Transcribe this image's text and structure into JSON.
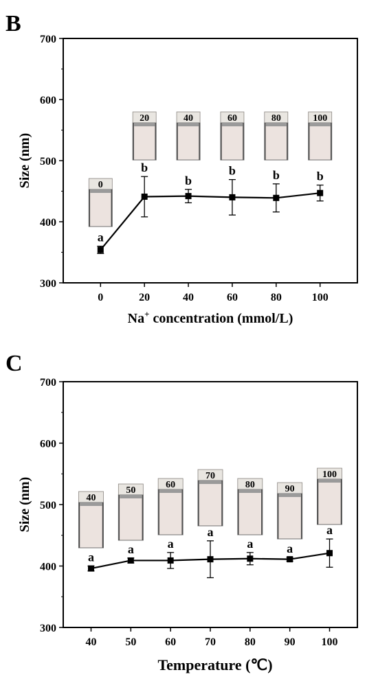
{
  "chart_data": [
    {
      "type": "line",
      "panel_label": "B",
      "title": "",
      "xlabel_main": "Na",
      "xlabel_sup": "+",
      "xlabel_rest": " concentration (mmol/L)",
      "ylabel": "Size (nm)",
      "xlim": [
        -17,
        117
      ],
      "ylim": [
        300,
        700
      ],
      "x_ticks": [
        "0",
        "20",
        "40",
        "60",
        "80",
        "100"
      ],
      "y_ticks": [
        "300",
        "400",
        "500",
        "600",
        "700"
      ],
      "grid": false,
      "legend": "none",
      "series": [
        {
          "x": [
            0,
            20,
            40,
            60,
            80,
            100
          ],
          "y": [
            354,
            441,
            442,
            440,
            439,
            447
          ],
          "err": [
            6,
            33,
            11,
            29,
            23,
            13
          ],
          "letters": [
            "a",
            "b",
            "b",
            "b",
            "b",
            "b"
          ]
        }
      ],
      "vials": [
        "0",
        "20",
        "40",
        "60",
        "80",
        "100"
      ]
    },
    {
      "type": "line",
      "panel_label": "C",
      "title": "",
      "xlabel": "Temperature (℃)",
      "ylabel": "Size (nm)",
      "xlim": [
        33,
        107
      ],
      "ylim": [
        300,
        700
      ],
      "x_ticks": [
        "40",
        "50",
        "60",
        "70",
        "80",
        "90",
        "100"
      ],
      "y_ticks": [
        "300",
        "400",
        "500",
        "600",
        "700"
      ],
      "grid": false,
      "legend": "none",
      "series": [
        {
          "x": [
            40,
            50,
            60,
            70,
            80,
            90,
            100
          ],
          "y": [
            396,
            409,
            409,
            411,
            412,
            411,
            421
          ],
          "err": [
            4,
            4,
            13,
            30,
            10,
            3,
            23
          ],
          "letters": [
            "a",
            "a",
            "a",
            "a",
            "a",
            "a",
            "a"
          ]
        }
      ],
      "vials": [
        "40",
        "50",
        "60",
        "70",
        "80",
        "90",
        "100"
      ]
    }
  ]
}
